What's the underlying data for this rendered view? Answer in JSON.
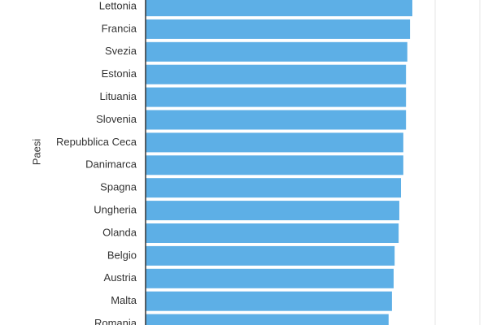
{
  "chart_data": {
    "type": "bar",
    "orientation": "horizontal",
    "y_label": "Paesi",
    "categories": [
      "Lettonia",
      "Francia",
      "Svezia",
      "Estonia",
      "Lituania",
      "Slovenia",
      "Repubblica Ceca",
      "Danimarca",
      "Spagna",
      "Ungheria",
      "Olanda",
      "Belgio",
      "Austria",
      "Malta",
      "Romania"
    ],
    "values": [
      79.8,
      79.1,
      78.3,
      77.9,
      77.9,
      77.9,
      77.1,
      77.1,
      76.4,
      75.9,
      75.7,
      74.5,
      74.2,
      73.7,
      72.7
    ],
    "color": "#5dafe6",
    "xlim": [
      0,
      100
    ]
  }
}
